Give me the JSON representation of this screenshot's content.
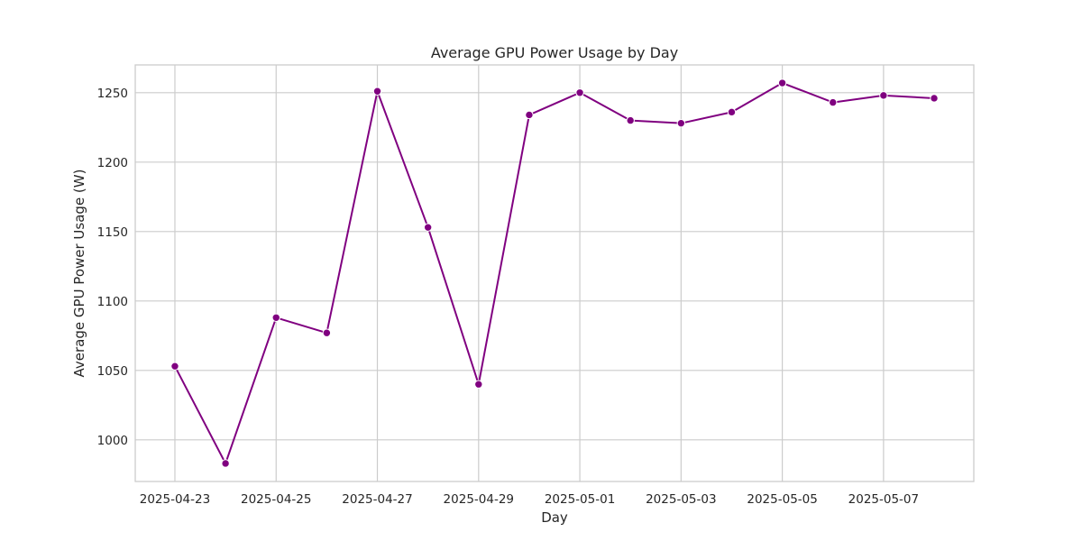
{
  "chart_data": {
    "type": "line",
    "title": "Average GPU Power Usage by Day",
    "xlabel": "Day",
    "ylabel": "Average GPU Power Usage (W)",
    "x": [
      "2025-04-23",
      "2025-04-24",
      "2025-04-25",
      "2025-04-26",
      "2025-04-27",
      "2025-04-28",
      "2025-04-29",
      "2025-04-30",
      "2025-05-01",
      "2025-05-02",
      "2025-05-03",
      "2025-05-04",
      "2025-05-05",
      "2025-05-06",
      "2025-05-07",
      "2025-05-08"
    ],
    "values": [
      1053,
      983,
      1088,
      1077,
      1251,
      1153,
      1040,
      1234,
      1250,
      1230,
      1228,
      1236,
      1257,
      1243,
      1248,
      1246
    ],
    "xticks": [
      "2025-04-23",
      "2025-04-25",
      "2025-04-27",
      "2025-04-29",
      "2025-05-01",
      "2025-05-03",
      "2025-05-05",
      "2025-05-07"
    ],
    "yticks": [
      1000,
      1050,
      1100,
      1150,
      1200,
      1250
    ],
    "xlim": [
      "2025-04-22T05:12",
      "2025-05-08T18:48"
    ],
    "ylim": [
      970,
      1270
    ],
    "grid": true,
    "line_color": "#800080"
  }
}
